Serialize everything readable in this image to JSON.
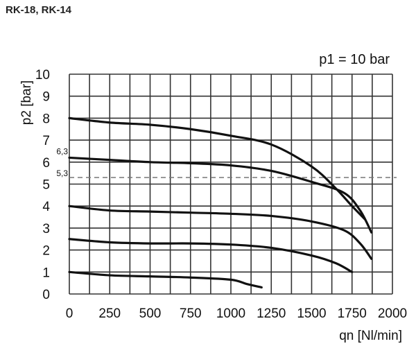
{
  "page_title": "RK-18, RK-14",
  "chart_data": {
    "type": "line",
    "annotation": "p1 = 10 bar",
    "xlabel": "qn [Nl/min]",
    "ylabel": "p2 [bar]",
    "xlim": [
      0,
      2000
    ],
    "ylim": [
      0,
      10
    ],
    "xticks": [
      0,
      250,
      500,
      750,
      1000,
      1250,
      1500,
      1750,
      2000
    ],
    "yticks": [
      0,
      1,
      2,
      3,
      4,
      5,
      6,
      7,
      8,
      9,
      10
    ],
    "x_grid_step": 125,
    "grid": true,
    "reference_lines": [
      {
        "y": 5.3,
        "label": "5,3",
        "style": "dashed"
      },
      {
        "y": 6.3,
        "label": "6,3",
        "style": "none"
      }
    ],
    "series": [
      {
        "values": [
          [
            0,
            8.0
          ],
          [
            250,
            7.8
          ],
          [
            500,
            7.7
          ],
          [
            750,
            7.5
          ],
          [
            1000,
            7.2
          ],
          [
            1250,
            6.8
          ],
          [
            1500,
            5.8
          ],
          [
            1650,
            4.8
          ],
          [
            1750,
            4.0
          ],
          [
            1830,
            3.4
          ]
        ]
      },
      {
        "values": [
          [
            0,
            6.2
          ],
          [
            250,
            6.1
          ],
          [
            500,
            6.0
          ],
          [
            750,
            5.95
          ],
          [
            1000,
            5.85
          ],
          [
            1250,
            5.6
          ],
          [
            1500,
            5.1
          ],
          [
            1700,
            4.6
          ],
          [
            1800,
            3.8
          ],
          [
            1870,
            2.8
          ]
        ]
      },
      {
        "values": [
          [
            0,
            4.0
          ],
          [
            250,
            3.8
          ],
          [
            500,
            3.75
          ],
          [
            750,
            3.7
          ],
          [
            1000,
            3.65
          ],
          [
            1250,
            3.55
          ],
          [
            1500,
            3.3
          ],
          [
            1700,
            2.9
          ],
          [
            1800,
            2.3
          ],
          [
            1870,
            1.6
          ]
        ]
      },
      {
        "values": [
          [
            0,
            2.5
          ],
          [
            250,
            2.35
          ],
          [
            500,
            2.3
          ],
          [
            750,
            2.3
          ],
          [
            1000,
            2.25
          ],
          [
            1250,
            2.1
          ],
          [
            1500,
            1.75
          ],
          [
            1650,
            1.4
          ],
          [
            1750,
            1.0
          ]
        ]
      },
      {
        "values": [
          [
            0,
            1.0
          ],
          [
            250,
            0.85
          ],
          [
            500,
            0.8
          ],
          [
            750,
            0.75
          ],
          [
            1000,
            0.65
          ],
          [
            1100,
            0.45
          ],
          [
            1190,
            0.3
          ]
        ]
      }
    ]
  }
}
